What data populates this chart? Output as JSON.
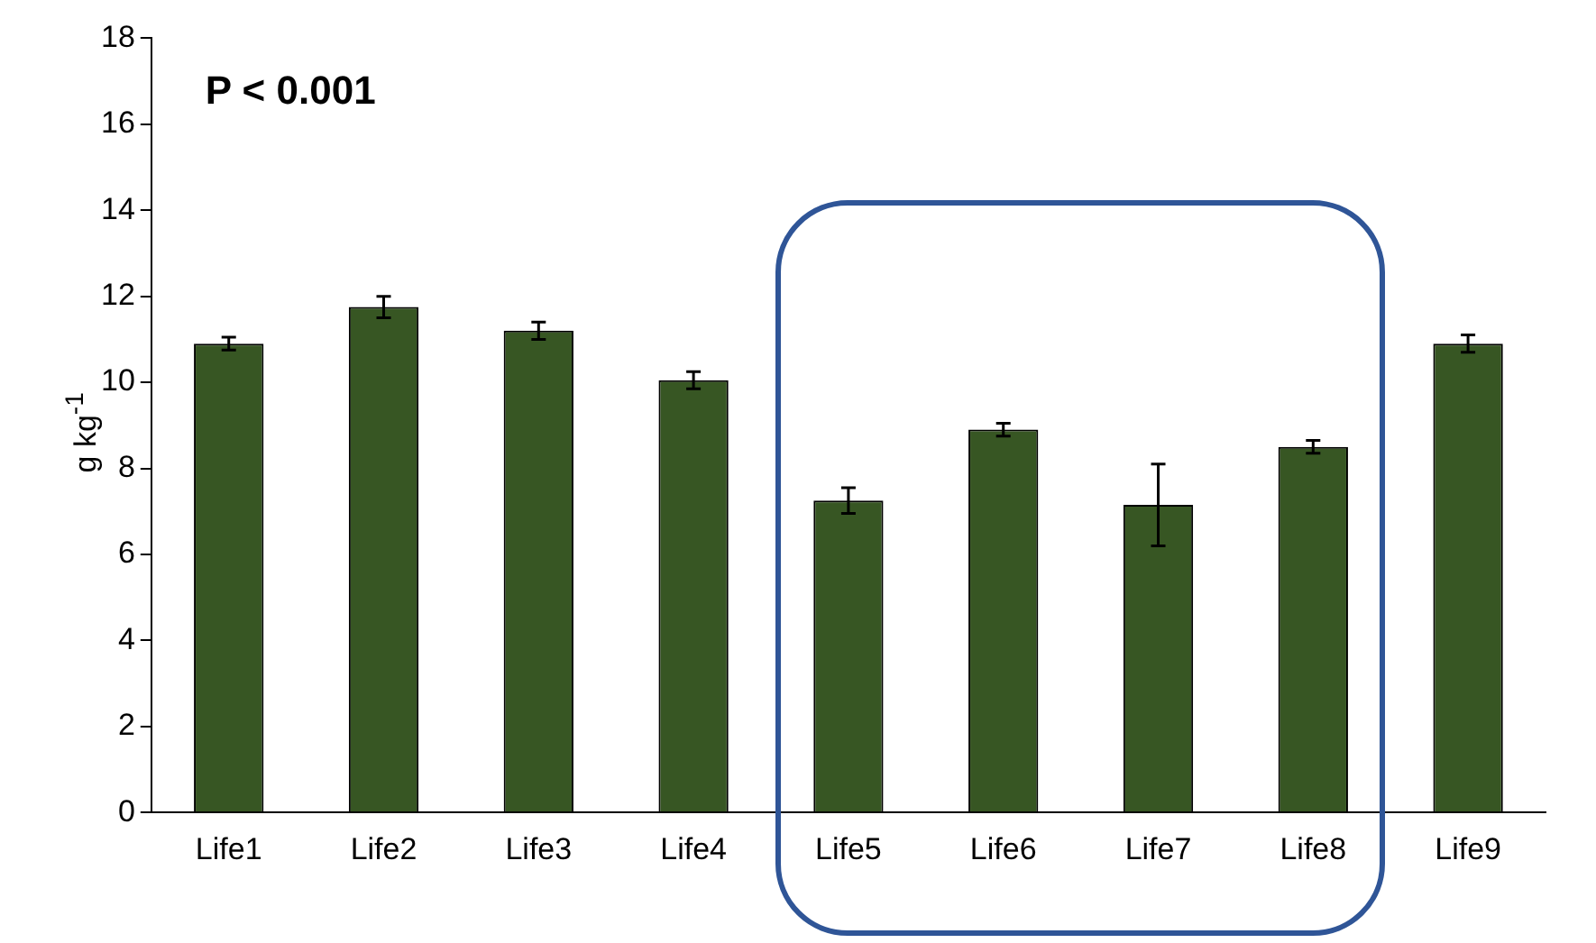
{
  "chart_data": {
    "type": "bar",
    "ylabel": "g kg$^{-1}$",
    "categories": [
      "Life1",
      "Life2",
      "Life3",
      "Life4",
      "Life5",
      "Life6",
      "Life7",
      "Life8",
      "Life9"
    ],
    "values": [
      10.9,
      11.75,
      11.2,
      10.05,
      7.25,
      8.9,
      7.15,
      8.5,
      10.9
    ],
    "errors": [
      0.15,
      0.25,
      0.2,
      0.2,
      0.3,
      0.15,
      0.95,
      0.15,
      0.2
    ],
    "color": "#375623",
    "ylim": [
      0,
      18
    ],
    "yticks": [
      0,
      2,
      4,
      6,
      8,
      10,
      12,
      14,
      16,
      18
    ],
    "annotations": [
      {
        "text": "P < 0.001"
      }
    ]
  }
}
